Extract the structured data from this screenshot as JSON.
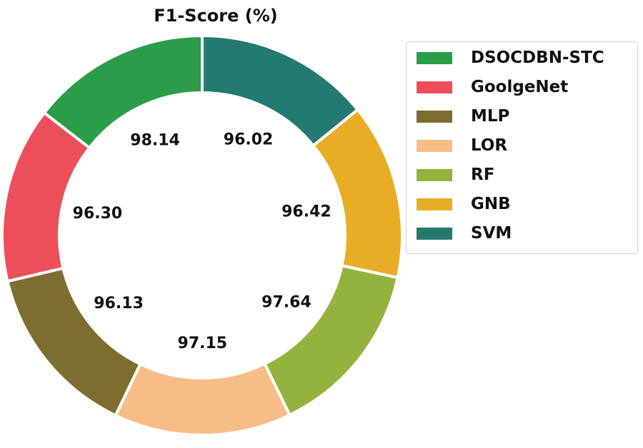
{
  "chart_data": {
    "type": "pie",
    "title": "F1-Score (%)",
    "categories": [
      "SVM",
      "GNB",
      "RF",
      "LOR",
      "MLP",
      "GoolgeNet",
      "DSOCDBN-STC"
    ],
    "values": [
      96.02,
      96.42,
      97.64,
      97.15,
      96.13,
      96.3,
      98.14
    ],
    "value_labels": [
      "96.02",
      "96.42",
      "97.64",
      "97.15",
      "96.13",
      "96.30",
      "98.14"
    ],
    "colors": [
      "#247a6e",
      "#e8ad24",
      "#94b33e",
      "#f8bc86",
      "#7d6e30",
      "#ec4f5a",
      "#2b9d48"
    ],
    "style": "donut",
    "legend": {
      "placement": "right",
      "entries": [
        "DSOCDBN-STC",
        "GoolgeNet",
        "MLP",
        "LOR",
        "RF",
        "GNB",
        "SVM"
      ],
      "colors": [
        "#2b9d48",
        "#ec4f5a",
        "#7d6e30",
        "#f8bc86",
        "#94b33e",
        "#e8ad24",
        "#247a6e"
      ]
    }
  }
}
